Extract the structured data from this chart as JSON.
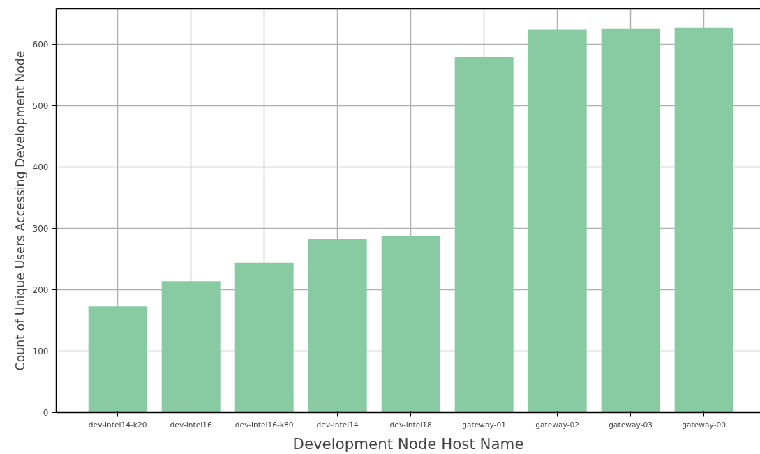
{
  "chart_data": {
    "type": "bar",
    "xlabel": "Development Node Host Name",
    "ylabel": "Count of Unique Users Accessing Development Node",
    "categories": [
      "dev-intel14-k20",
      "dev-intel16",
      "dev-intel16-k80",
      "dev-intel14",
      "dev-intel18",
      "gateway-01",
      "gateway-02",
      "gateway-03",
      "gateway-00"
    ],
    "values": [
      173,
      214,
      244,
      283,
      287,
      579,
      624,
      626,
      627
    ],
    "color": "#88cba3",
    "ylim": [
      0,
      658
    ],
    "yticks": [
      0,
      100,
      200,
      300,
      400,
      500,
      600
    ],
    "grid": true
  }
}
